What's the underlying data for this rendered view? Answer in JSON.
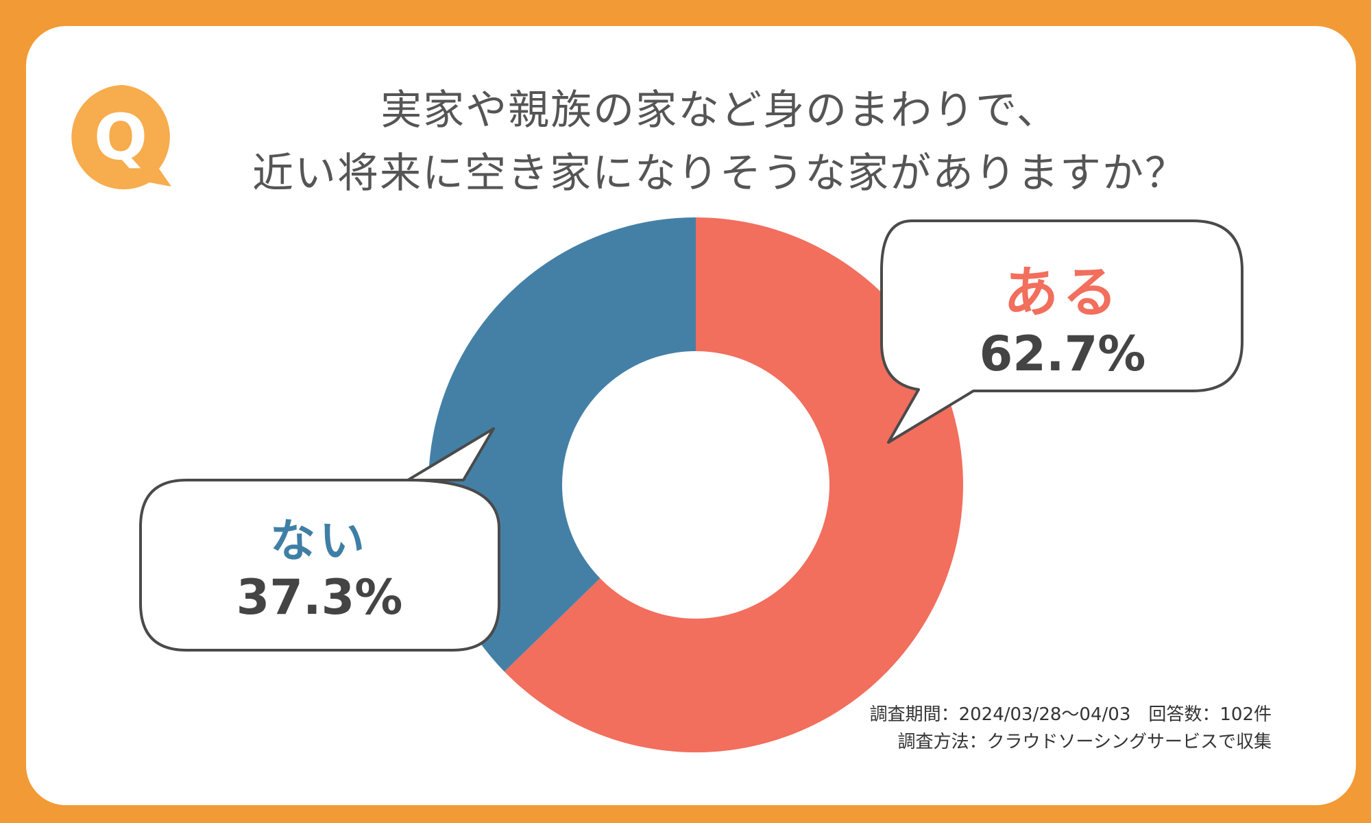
{
  "header": {
    "badge_letter": "Q",
    "title_line1": "実家や親族の家など身のまわりで、",
    "title_line2": "近い将来に空き家になりそうな家がありますか？"
  },
  "chart_data": {
    "type": "pie",
    "donut": true,
    "categories": [
      "ある",
      "ない"
    ],
    "values": [
      62.7,
      37.3
    ],
    "value_labels": [
      "62.7%",
      "37.3%"
    ],
    "colors": [
      "#f26e5d",
      "#4480a6"
    ],
    "start_angle_deg": 0,
    "direction": "clockwise"
  },
  "labels": {
    "yes_label": "ある",
    "yes_value": "62.7%",
    "no_label": "ない",
    "no_value": "37.3%"
  },
  "notes": {
    "line1": "調査期間：2024/03/28〜04/03　回答数：102件",
    "line2": "調査方法：クラウドソーシングサービスで収集"
  },
  "colors": {
    "background": "#f29a35",
    "badge": "#f7ac4d",
    "title_text": "#555555"
  }
}
